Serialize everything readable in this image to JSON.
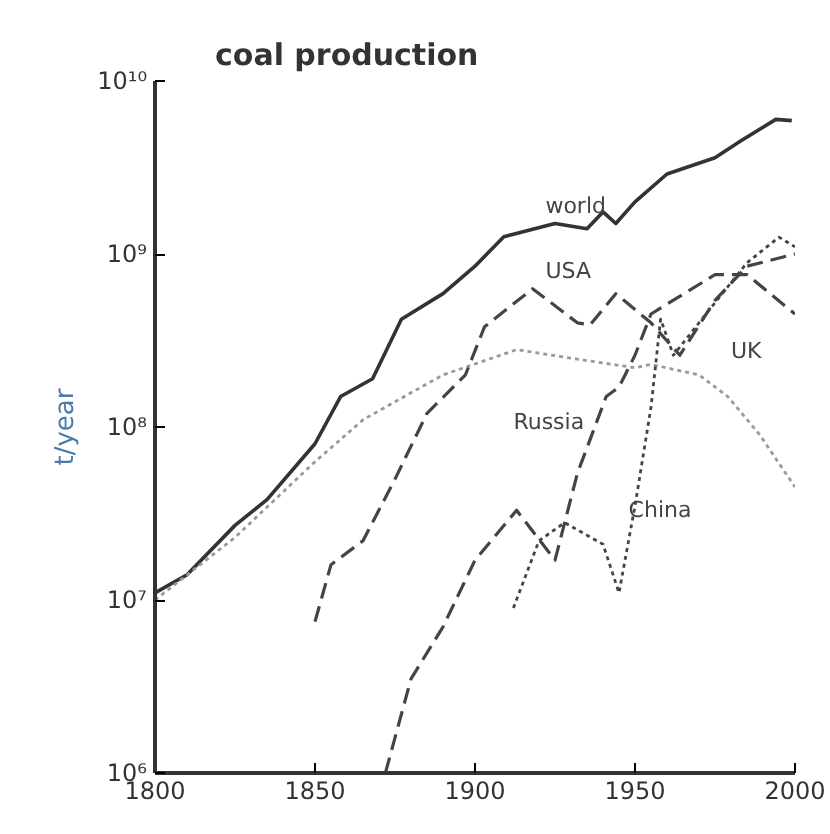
{
  "chart_data": {
    "type": "line",
    "title": "coal production",
    "ylabel": "t/year",
    "log": "y",
    "xlim": [
      1800,
      2000
    ],
    "xticks": [
      1800,
      1850,
      1900,
      1950,
      2000
    ],
    "ylim": [
      1000000.0,
      10000000000.0
    ],
    "yticks": [
      {
        "value": 1000000.0,
        "label": "10⁶"
      },
      {
        "value": 10000000.0,
        "label": "10⁷"
      },
      {
        "value": 100000000.0,
        "label": "10⁸"
      },
      {
        "value": 1000000000.0,
        "label": "10⁹"
      },
      {
        "value": 10000000000.0,
        "label": "10¹⁰"
      }
    ],
    "grid": false,
    "marker": "none",
    "series": [
      {
        "name": "world",
        "color": "#333333",
        "line_style": "solid",
        "x": [
          1800,
          1810,
          1825,
          1835,
          1850,
          1858,
          1868,
          1877,
          1890,
          1900,
          1909,
          1925,
          1935,
          1940,
          1944,
          1950,
          1960,
          1975,
          1983,
          1994,
          1999
        ],
        "values": [
          11000000.0,
          14000000.0,
          27000000.0,
          38000000.0,
          80000000.0,
          150000000.0,
          190000000.0,
          420000000.0,
          590000000.0,
          850000000.0,
          1260000000.0,
          1500000000.0,
          1400000000.0,
          1750000000.0,
          1500000000.0,
          2000000000.0,
          2900000000.0,
          3600000000.0,
          4500000000.0,
          6000000000.0,
          5900000000.0
        ]
      },
      {
        "name": "UK",
        "color": "#999999",
        "line_style": "dotted",
        "x": [
          1800,
          1825,
          1850,
          1865,
          1875,
          1890,
          1913,
          1930,
          1950,
          1955,
          1970,
          1979,
          1989,
          2000
        ],
        "values": [
          10000000.0,
          23000000.0,
          63000000.0,
          110000000.0,
          140000000.0,
          200000000.0,
          280000000.0,
          250000000.0,
          220000000.0,
          230000000.0,
          200000000.0,
          150000000.0,
          90000000.0,
          45000000.0
        ]
      },
      {
        "name": "USA",
        "color": "#444444",
        "line_style": "dashed",
        "x": [
          1850,
          1855,
          1865,
          1875,
          1885,
          1897,
          1903,
          1918,
          1932,
          1936,
          1944,
          1955,
          1964,
          1975,
          1985,
          2000
        ],
        "values": [
          7500000.0,
          16000000.0,
          22000000.0,
          50000000.0,
          120000000.0,
          200000000.0,
          380000000.0,
          630000000.0,
          400000000.0,
          390000000.0,
          590000000.0,
          400000000.0,
          260000000.0,
          540000000.0,
          850000000.0,
          1000000000.0
        ]
      },
      {
        "name": "Russia",
        "color": "#444444",
        "line_style": "dashed",
        "x": [
          1872,
          1880,
          1890,
          1900,
          1913,
          1925,
          1932,
          1941,
          1945,
          1950,
          1955,
          1975,
          1985,
          2000
        ],
        "values": [
          1000000.0,
          3500000.0,
          7000000.0,
          17000000.0,
          33000000.0,
          17000000.0,
          54000000.0,
          150000000.0,
          170000000.0,
          260000000.0,
          450000000.0,
          760000000.0,
          760000000.0,
          450000000.0
        ]
      },
      {
        "name": "China",
        "color": "#444444",
        "line_style": "dotted",
        "x": [
          1912,
          1920,
          1928,
          1940,
          1945,
          1950,
          1955,
          1958,
          1962,
          1970,
          1985,
          1995,
          2000
        ],
        "values": [
          9000000.0,
          22000000.0,
          28000000.0,
          21000000.0,
          11000000.0,
          35000000.0,
          130000000.0,
          420000000.0,
          260000000.0,
          400000000.0,
          890000000.0,
          1250000000.0,
          1100000000.0
        ]
      }
    ]
  }
}
